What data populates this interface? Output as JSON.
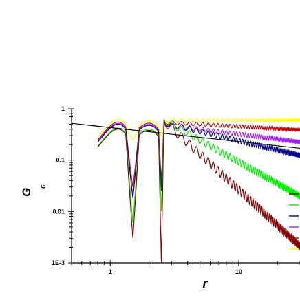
{
  "chart_data": {
    "type": "line",
    "title": "",
    "xlabel": "r",
    "ylabel": "G",
    "ylabel_subscript": "6",
    "xscale": "log",
    "yscale": "log",
    "xlim": [
      0.5,
      30
    ],
    "ylim": [
      0.001,
      1
    ],
    "x_ticks": [
      {
        "value": 1,
        "label": "1"
      },
      {
        "value": 10,
        "label": "10"
      }
    ],
    "y_ticks": [
      {
        "value": 1,
        "label": "1"
      },
      {
        "value": 0.1,
        "label": "0.1"
      },
      {
        "value": 0.01,
        "label": "0.01"
      },
      {
        "value": 0.001,
        "label": "1E-3"
      }
    ],
    "legend_placement": "right (color swatches only, no labels)",
    "grid": false,
    "fit_line": {
      "color": "#000000",
      "points": [
        [
          0.5,
          0.52
        ],
        [
          30,
          0.17
        ]
      ]
    },
    "series": [
      {
        "color": "#FFFF00",
        "decay": 0.0,
        "level": 0.6,
        "first_peak": 0.62,
        "min1": 0.25,
        "min2": 0.3,
        "ripple": 0.06
      },
      {
        "color": "#C00000",
        "decay": 0.14,
        "level": 0.55,
        "first_peak": 0.55,
        "min1": 0.03,
        "min2": 0.04,
        "ripple": 0.08
      },
      {
        "color": "#A020F0",
        "decay": 0.32,
        "level": 0.5,
        "first_peak": 0.52,
        "min1": 0.02,
        "min2": 0.03,
        "ripple": 0.1
      },
      {
        "color": "#000080",
        "decay": 0.6,
        "level": 0.55,
        "first_peak": 0.5,
        "min1": 0.018,
        "min2": 0.025,
        "ripple": 0.12
      },
      {
        "color": "#00EE00",
        "decay": 1.4,
        "level": 0.65,
        "first_peak": 0.42,
        "min1": 0.006,
        "min2": 0.01,
        "ripple": 0.16
      },
      {
        "color": "#800000",
        "decay": 2.3,
        "level": 0.65,
        "first_peak": 0.4,
        "min1": 0.003,
        "min2": 0.001,
        "ripple": 0.2
      }
    ],
    "x_start": 0.8,
    "x_min1": 1.5,
    "x_min2": 2.5
  }
}
